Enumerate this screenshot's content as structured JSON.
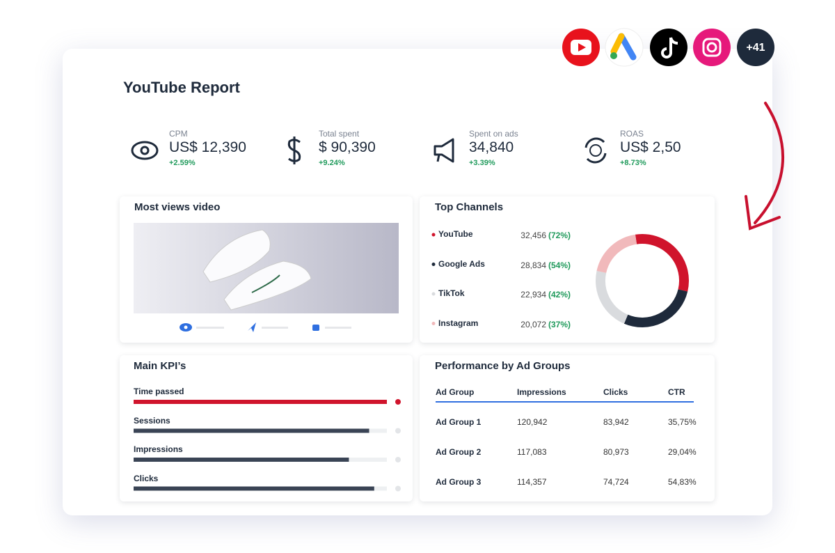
{
  "header": {
    "title": "YouTube Report"
  },
  "badges": {
    "more": "+41"
  },
  "kpis": [
    {
      "label": "CPM",
      "value": "US$ 12,390",
      "change": "+2.59%"
    },
    {
      "label": "Total spent",
      "value": "$ 90,390",
      "change": "+9.24%"
    },
    {
      "label": "Spent on ads",
      "value": "34,840",
      "change": "+3.39%"
    },
    {
      "label": "ROAS",
      "value": "US$ 2,50",
      "change": "+8.73%"
    }
  ],
  "video": {
    "title": "Most views video"
  },
  "channels": {
    "title": "Top Channels",
    "items": [
      {
        "name": "YouTube",
        "value": 32456,
        "value_label": "32,456",
        "share": "(72%)",
        "color": "#d0142c"
      },
      {
        "name": "Google Ads",
        "value": 28834,
        "value_label": "28,834",
        "share": "(54%)",
        "color": "#1e2a3b"
      },
      {
        "name": "TikTok",
        "value": 22934,
        "value_label": "22,934",
        "share": "(42%)",
        "color": "#d9dbde"
      },
      {
        "name": "Instagram",
        "value": 20072,
        "value_label": "20,072",
        "share": "(37%)",
        "color": "#f1b9bb"
      }
    ]
  },
  "main_kpis": {
    "title": "Main KPI’s",
    "items": [
      {
        "name": "Time passed",
        "progress": 100,
        "color": "#d0142c"
      },
      {
        "name": "Sessions",
        "progress": 93,
        "color": "#3a4455"
      },
      {
        "name": "Impressions",
        "progress": 85,
        "color": "#3a4455"
      },
      {
        "name": "Clicks",
        "progress": 95,
        "color": "#3a4455"
      }
    ]
  },
  "ad_groups": {
    "title": "Performance by Ad Groups",
    "columns": [
      "Ad Group",
      "Impressions",
      "Clicks",
      "CTR"
    ],
    "rows": [
      [
        "Ad Group 1",
        "120,942",
        "83,942",
        "35,75%"
      ],
      [
        "Ad Group 2",
        "117,083",
        "80,973",
        "29,04%"
      ],
      [
        "Ad Group 3",
        "114,357",
        "74,724",
        "54,83%"
      ]
    ]
  }
}
